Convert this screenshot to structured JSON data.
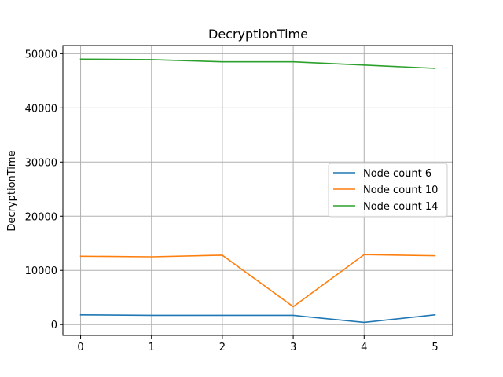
{
  "chart_data": {
    "type": "line",
    "title": "DecryptionTime",
    "xlabel": "",
    "ylabel": "DecryptionTime",
    "x": [
      0,
      1,
      2,
      3,
      4,
      5
    ],
    "xlim": [
      -0.25,
      5.25
    ],
    "ylim": [
      -2000,
      51500
    ],
    "xticks": [
      0,
      1,
      2,
      3,
      4,
      5
    ],
    "yticks": [
      0,
      10000,
      20000,
      30000,
      40000,
      50000
    ],
    "grid": true,
    "legend_position": "center-right",
    "series": [
      {
        "name": "Node count 6",
        "color": "#1f77b4",
        "values": [
          1800,
          1700,
          1700,
          1700,
          400,
          1800
        ]
      },
      {
        "name": "Node count 10",
        "color": "#ff7f0e",
        "values": [
          12600,
          12500,
          12800,
          3300,
          12900,
          12700
        ]
      },
      {
        "name": "Node count 14",
        "color": "#2ca02c",
        "values": [
          49000,
          48900,
          48500,
          48500,
          47900,
          47300
        ]
      }
    ]
  }
}
